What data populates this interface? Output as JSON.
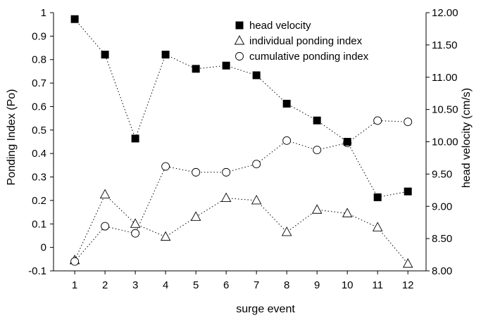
{
  "chart_data": {
    "type": "line",
    "xlabel": "surge event",
    "ylabel_left": "Ponding Index (Po)",
    "ylabel_right": "head velocity (cm/s)",
    "categories": [
      "1",
      "2",
      "3",
      "4",
      "5",
      "6",
      "7",
      "8",
      "9",
      "10",
      "11",
      "12"
    ],
    "x": [
      1,
      2,
      3,
      4,
      5,
      6,
      7,
      8,
      9,
      10,
      11,
      12
    ],
    "xlim": [
      0.3,
      12.6
    ],
    "ylim_left": [
      -0.1,
      1
    ],
    "ylim_right": [
      8.0,
      12.0
    ],
    "left_ticks": [
      "-0.1",
      "0",
      "0.1",
      "0.2",
      "0.3",
      "0.4",
      "0.5",
      "0.6",
      "0.7",
      "0.8",
      "0.9",
      "1"
    ],
    "right_ticks": [
      "8.00",
      "8.50",
      "9.00",
      "9.50",
      "10.00",
      "10.50",
      "11.00",
      "11.50",
      "12.00"
    ],
    "grid": false,
    "legend_position": "top-right",
    "series": [
      {
        "name": "head velocity",
        "axis": "right",
        "marker": "filled-square",
        "line_style": "dotted",
        "color": "#000000",
        "values": [
          11.9,
          11.35,
          10.05,
          11.35,
          11.13,
          11.18,
          11.03,
          10.59,
          10.33,
          10.0,
          9.14,
          9.23
        ]
      },
      {
        "name": "individual ponding index",
        "axis": "left",
        "marker": "open-triangle",
        "line_style": "dotted",
        "color": "#000000",
        "values": [
          -0.055,
          0.225,
          0.1,
          0.045,
          0.13,
          0.21,
          0.2,
          0.065,
          0.16,
          0.145,
          0.085,
          -0.07
        ]
      },
      {
        "name": "cumulative ponding index",
        "axis": "left",
        "marker": "open-circle",
        "line_style": "dotted",
        "color": "#000000",
        "values": [
          -0.06,
          0.09,
          0.06,
          0.345,
          0.32,
          0.32,
          0.355,
          0.455,
          0.415,
          0.445,
          0.54,
          0.535
        ]
      }
    ]
  }
}
